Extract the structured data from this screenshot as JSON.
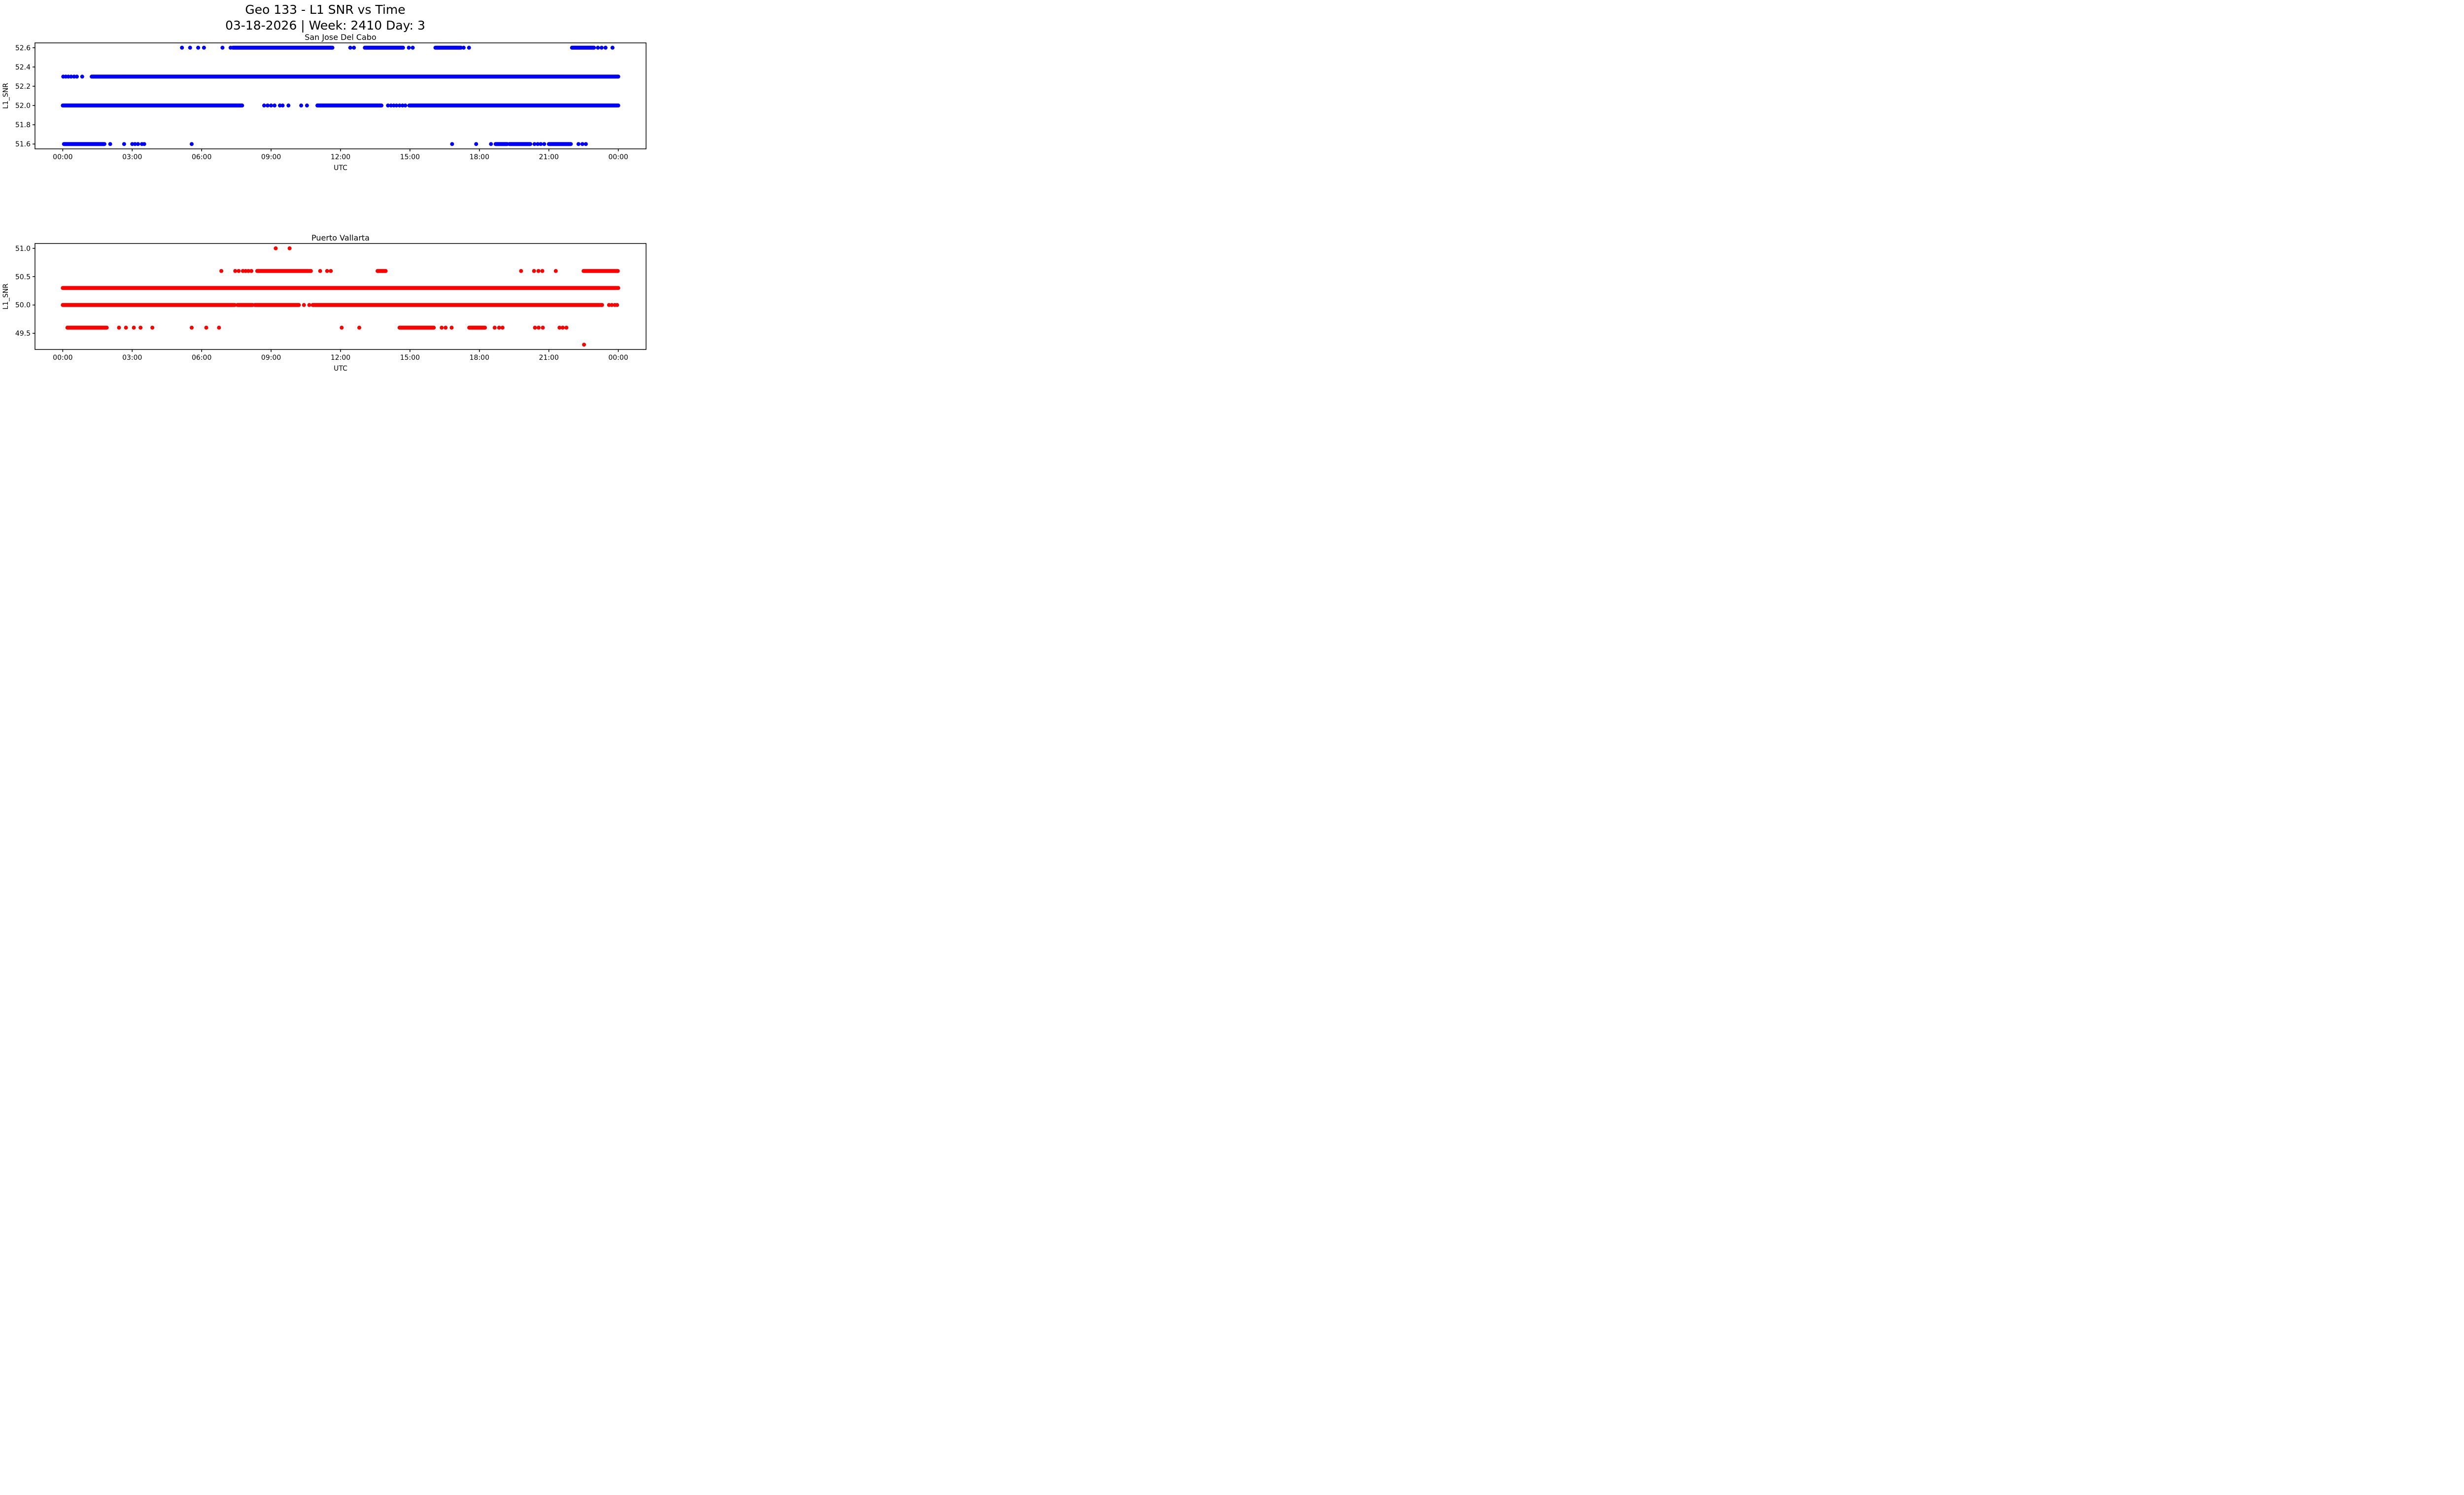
{
  "figure": {
    "title_line1": "Geo 133 - L1 SNR vs Time",
    "title_line2": "03-18-2026 | Week: 2410 Day: 3",
    "background_color": "#ffffff",
    "text_color": "#000000"
  },
  "chart_data": [
    {
      "type": "scatter",
      "title": "San Jose Del Cabo",
      "xlabel": "UTC",
      "ylabel": "L1_SNR",
      "marker": "circle",
      "marker_color": "#0000ff",
      "grid": false,
      "legend": "none",
      "xlim": [
        -1.2,
        25.2
      ],
      "ylim": [
        51.55,
        52.65
      ],
      "xtick_hours": [
        0,
        3,
        6,
        9,
        12,
        15,
        18,
        21,
        24
      ],
      "xtick_labels": [
        "00:00",
        "03:00",
        "06:00",
        "09:00",
        "12:00",
        "15:00",
        "18:00",
        "21:00",
        "00:00"
      ],
      "ytick_values": [
        52.6,
        52.4,
        52.2,
        52.0,
        51.8,
        51.6
      ],
      "ytick_labels": [
        "52.6",
        "52.4",
        "52.2",
        "52.0",
        "51.8",
        "51.6"
      ],
      "levels": [
        {
          "snr": 52.6,
          "runs": [
            [
              7.35,
              11.65
            ],
            [
              13.05,
              14.7
            ],
            [
              16.1,
              17.2
            ],
            [
              22.0,
              22.95
            ]
          ],
          "dots": [
            5.15,
            5.5,
            5.85,
            6.1,
            6.9,
            7.25,
            12.42,
            12.58,
            14.95,
            15.12,
            17.32,
            17.55,
            23.12,
            23.28,
            23.45,
            23.75
          ]
        },
        {
          "snr": 52.3,
          "runs": [
            [
              1.25,
              24.0
            ]
          ],
          "dots": [
            0.02,
            0.13,
            0.24,
            0.36,
            0.49,
            0.61,
            0.84
          ]
        },
        {
          "snr": 52.0,
          "runs": [
            [
              0.0,
              7.75
            ],
            [
              11.0,
              13.77
            ],
            [
              14.97,
              24.0
            ]
          ],
          "dots": [
            8.7,
            8.85,
            9.0,
            9.15,
            9.38,
            9.5,
            9.75,
            10.3,
            10.55,
            14.05,
            14.18,
            14.3,
            14.42,
            14.55,
            14.68,
            14.8
          ]
        },
        {
          "snr": 51.6,
          "runs": [
            [
              0.05,
              1.8
            ],
            [
              18.7,
              19.2
            ],
            [
              19.3,
              20.2
            ],
            [
              21.0,
              21.95
            ]
          ],
          "dots": [
            2.05,
            2.65,
            3.0,
            3.12,
            3.25,
            3.42,
            3.52,
            5.57,
            16.82,
            17.86,
            18.5,
            20.38,
            20.52,
            20.65,
            20.8,
            22.28,
            22.45,
            22.6
          ]
        }
      ]
    },
    {
      "type": "scatter",
      "title": "Puerto Vallarta",
      "xlabel": "UTC",
      "ylabel": "L1_SNR",
      "marker": "circle",
      "marker_color": "#ff0000",
      "grid": false,
      "legend": "none",
      "xlim": [
        -1.2,
        25.2
      ],
      "ylim": [
        49.215,
        51.085
      ],
      "xtick_hours": [
        0,
        3,
        6,
        9,
        12,
        15,
        18,
        21,
        24
      ],
      "xtick_labels": [
        "00:00",
        "03:00",
        "06:00",
        "09:00",
        "12:00",
        "15:00",
        "18:00",
        "21:00",
        "00:00"
      ],
      "ytick_values": [
        51.0,
        50.5,
        50.0,
        49.5
      ],
      "ytick_labels": [
        "51.0",
        "50.5",
        "50.0",
        "49.5"
      ],
      "levels": [
        {
          "snr": 51.0,
          "runs": [],
          "dots": [
            9.2,
            9.8
          ]
        },
        {
          "snr": 50.6,
          "runs": [
            [
              8.4,
              10.72
            ],
            [
              13.6,
              13.95
            ],
            [
              22.5,
              23.98
            ]
          ],
          "dots": [
            6.85,
            7.45,
            7.6,
            7.78,
            7.9,
            8.02,
            8.15,
            11.12,
            11.42,
            11.58,
            19.8,
            20.36,
            20.55,
            20.72,
            21.3
          ]
        },
        {
          "snr": 50.3,
          "runs": [
            [
              0.0,
              24.0
            ]
          ],
          "dots": []
        },
        {
          "snr": 50.0,
          "runs": [
            [
              0.0,
              7.43
            ],
            [
              7.55,
              8.2
            ],
            [
              8.3,
              10.2
            ],
            [
              10.8,
              23.3
            ]
          ],
          "dots": [
            10.42,
            10.65,
            23.6,
            23.72,
            23.85,
            23.95
          ]
        },
        {
          "snr": 49.6,
          "runs": [
            [
              0.2,
              1.9
            ],
            [
              14.55,
              16.03
            ],
            [
              17.56,
              18.24
            ]
          ],
          "dots": [
            2.43,
            2.73,
            3.07,
            3.36,
            3.87,
            5.57,
            6.2,
            6.75,
            12.05,
            12.81,
            16.37,
            16.54,
            16.8,
            18.66,
            18.85,
            19.0,
            20.4,
            20.56,
            20.74,
            21.46,
            21.6,
            21.76
          ]
        },
        {
          "snr": 49.3,
          "runs": [],
          "dots": [
            22.52
          ]
        }
      ]
    }
  ]
}
